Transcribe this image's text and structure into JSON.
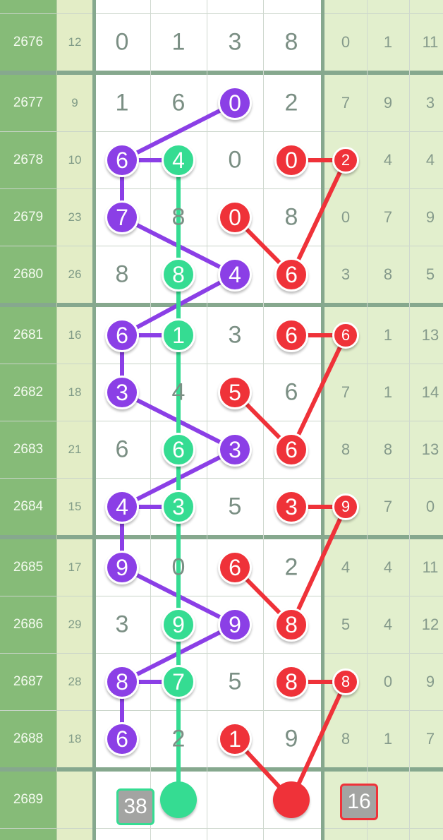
{
  "colors": {
    "purple": "#8b3fe6",
    "green": "#35dc92",
    "red": "#ef3239",
    "period_bg": "#86bb78",
    "sum_bg": "#e3edc6",
    "tail_bg": "#e2efcd",
    "digit_bg": "#ffffff"
  },
  "rows": [
    {
      "period": "2676",
      "sum": "12",
      "nums": [
        "0",
        "1",
        "3",
        "8"
      ],
      "hl": [
        null,
        null,
        null,
        null
      ],
      "tail": [
        "0",
        "1",
        "11"
      ],
      "tail_hl": [
        null,
        null,
        null
      ]
    },
    {
      "period": "2677",
      "sum": "9",
      "nums": [
        "1",
        "6",
        "0",
        "2"
      ],
      "hl": [
        null,
        null,
        "purple",
        null
      ],
      "tail": [
        "7",
        "9",
        "3"
      ],
      "tail_hl": [
        null,
        null,
        null
      ]
    },
    {
      "period": "2678",
      "sum": "10",
      "nums": [
        "6",
        "4",
        "0",
        "0"
      ],
      "hl": [
        "purple",
        "green",
        null,
        "red"
      ],
      "tail": [
        "2",
        "4",
        "4"
      ],
      "tail_hl": [
        "red",
        null,
        null
      ]
    },
    {
      "period": "2679",
      "sum": "23",
      "nums": [
        "7",
        "8",
        "0",
        "8"
      ],
      "hl": [
        "purple",
        null,
        "red",
        null
      ],
      "tail": [
        "0",
        "7",
        "9"
      ],
      "tail_hl": [
        null,
        null,
        null
      ]
    },
    {
      "period": "2680",
      "sum": "26",
      "nums": [
        "8",
        "8",
        "4",
        "6"
      ],
      "hl": [
        null,
        "green",
        "purple",
        "red"
      ],
      "tail": [
        "3",
        "8",
        "5"
      ],
      "tail_hl": [
        null,
        null,
        null
      ]
    },
    {
      "period": "2681",
      "sum": "16",
      "nums": [
        "6",
        "1",
        "3",
        "6"
      ],
      "hl": [
        "purple",
        "green",
        null,
        "red"
      ],
      "tail": [
        "6",
        "1",
        "13"
      ],
      "tail_hl": [
        "red",
        null,
        null
      ]
    },
    {
      "period": "2682",
      "sum": "18",
      "nums": [
        "3",
        "4",
        "5",
        "6"
      ],
      "hl": [
        "purple",
        null,
        "red",
        null
      ],
      "tail": [
        "7",
        "1",
        "14"
      ],
      "tail_hl": [
        null,
        null,
        null
      ]
    },
    {
      "period": "2683",
      "sum": "21",
      "nums": [
        "6",
        "6",
        "3",
        "6"
      ],
      "hl": [
        null,
        "green",
        "purple",
        "red"
      ],
      "tail": [
        "8",
        "8",
        "13"
      ],
      "tail_hl": [
        null,
        null,
        null
      ]
    },
    {
      "period": "2684",
      "sum": "15",
      "nums": [
        "4",
        "3",
        "5",
        "3"
      ],
      "hl": [
        "purple",
        "green",
        null,
        "red"
      ],
      "tail": [
        "9",
        "7",
        "0"
      ],
      "tail_hl": [
        "red",
        null,
        null
      ]
    },
    {
      "period": "2685",
      "sum": "17",
      "nums": [
        "9",
        "0",
        "6",
        "2"
      ],
      "hl": [
        "purple",
        null,
        "red",
        null
      ],
      "tail": [
        "4",
        "4",
        "11"
      ],
      "tail_hl": [
        null,
        null,
        null
      ]
    },
    {
      "period": "2686",
      "sum": "29",
      "nums": [
        "3",
        "9",
        "9",
        "8"
      ],
      "hl": [
        null,
        "green",
        "purple",
        "red"
      ],
      "tail": [
        "5",
        "4",
        "12"
      ],
      "tail_hl": [
        null,
        null,
        null
      ]
    },
    {
      "period": "2687",
      "sum": "28",
      "nums": [
        "8",
        "7",
        "5",
        "8"
      ],
      "hl": [
        "purple",
        "green",
        null,
        "red"
      ],
      "tail": [
        "8",
        "0",
        "9"
      ],
      "tail_hl": [
        "red",
        null,
        null
      ]
    },
    {
      "period": "2688",
      "sum": "18",
      "nums": [
        "6",
        "2",
        "1",
        "9"
      ],
      "hl": [
        "purple",
        null,
        "red",
        null
      ],
      "tail": [
        "8",
        "1",
        "7"
      ],
      "tail_hl": [
        null,
        null,
        null
      ]
    }
  ],
  "prediction": {
    "period": "2689",
    "left_box": "38",
    "right_box": "16",
    "dots": [
      {
        "col": 1,
        "color": "green"
      },
      {
        "col": 3,
        "color": "red"
      }
    ]
  },
  "lines": [
    {
      "color": "purple",
      "points": [
        [
          "2677",
          2
        ],
        [
          "2678",
          0
        ],
        [
          "2679",
          0
        ],
        [
          "2680",
          2
        ],
        [
          "2681",
          0
        ],
        [
          "2682",
          0
        ],
        [
          "2683",
          2
        ],
        [
          "2684",
          0
        ],
        [
          "2685",
          0
        ],
        [
          "2686",
          2
        ],
        [
          "2687",
          0
        ],
        [
          "2688",
          0
        ]
      ]
    },
    {
      "color": "green",
      "points": [
        [
          "2678",
          1
        ],
        [
          "2680",
          1
        ],
        [
          "2681",
          1
        ],
        [
          "2683",
          1
        ],
        [
          "2684",
          1
        ],
        [
          "2686",
          1
        ],
        [
          "2687",
          1
        ],
        [
          "2689",
          1
        ]
      ]
    },
    {
      "color": "purple",
      "points": [
        [
          "2678",
          0
        ],
        [
          "2678",
          1
        ]
      ]
    },
    {
      "color": "purple",
      "points": [
        [
          "2681",
          0
        ],
        [
          "2681",
          1
        ]
      ]
    },
    {
      "color": "purple",
      "points": [
        [
          "2684",
          0
        ],
        [
          "2684",
          1
        ]
      ]
    },
    {
      "color": "purple",
      "points": [
        [
          "2687",
          0
        ],
        [
          "2687",
          1
        ]
      ]
    },
    {
      "color": "red",
      "points": [
        [
          "2679",
          2
        ],
        [
          "2680",
          3
        ],
        [
          "2678",
          4
        ],
        [
          "2678",
          3
        ]
      ]
    },
    {
      "color": "red",
      "points": [
        [
          "2682",
          2
        ],
        [
          "2683",
          3
        ],
        [
          "2681",
          4
        ],
        [
          "2681",
          3
        ]
      ]
    },
    {
      "color": "red",
      "points": [
        [
          "2685",
          2
        ],
        [
          "2686",
          3
        ],
        [
          "2684",
          4
        ],
        [
          "2684",
          3
        ]
      ]
    },
    {
      "color": "red",
      "points": [
        [
          "2688",
          2
        ],
        [
          "2689",
          3
        ],
        [
          "2687",
          4
        ],
        [
          "2687",
          3
        ]
      ]
    }
  ]
}
